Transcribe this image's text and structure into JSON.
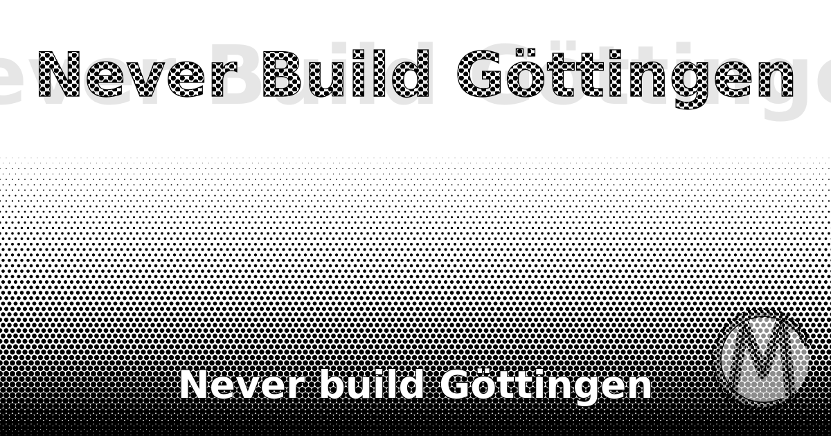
{
  "title_ghost": "Never Build Göttingen",
  "title": "Never Build Göttingen",
  "tagline": "Never build Göttingen",
  "logo": {
    "name": "logo-emblem",
    "letter": "M"
  },
  "colors": {
    "ink": "#000000",
    "paper": "#ffffff",
    "ghost": "#e6e6e6"
  }
}
